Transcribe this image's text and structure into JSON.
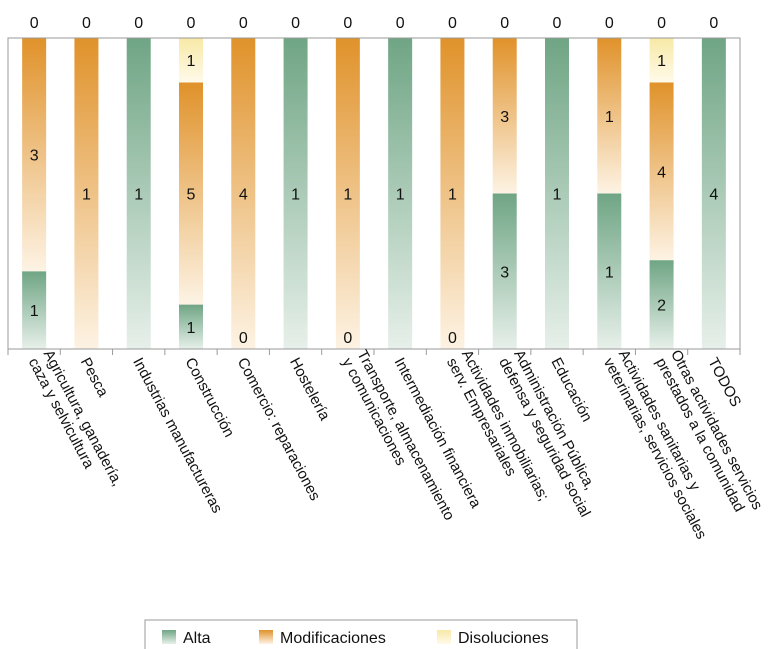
{
  "chart_data": {
    "type": "bar",
    "stacked": "percent",
    "categories": [
      [
        "Agricultura, ganadería,",
        "caza y selvicultura"
      ],
      [
        "Pesca"
      ],
      [
        "Industrias manufactureras"
      ],
      [
        "Construcción"
      ],
      [
        "Comercio: reparaciones"
      ],
      [
        "Hostelería"
      ],
      [
        "Transporte, almacenamiento",
        "y comunicaciones"
      ],
      [
        "Intermediación financiera"
      ],
      [
        "Actividades inmobiliarias;",
        "serv. Empresariales"
      ],
      [
        "Administración Pública,",
        "defensa y seguridad social"
      ],
      [
        "Educación"
      ],
      [
        "Actividades sanitarias y",
        "veterinarias, servicios sociales"
      ],
      [
        "Otras actividades servicios",
        "prestados a la comunidad"
      ],
      [
        "TODOS"
      ]
    ],
    "series": [
      {
        "name": "Alta",
        "color": "#6fa584",
        "values": [
          1,
          0,
          1,
          1,
          0,
          1,
          0,
          1,
          0,
          3,
          1,
          1,
          2,
          4
        ]
      },
      {
        "name": "Modificaciones",
        "color": "#e0922a",
        "values": [
          3,
          1,
          0,
          5,
          4,
          0,
          1,
          0,
          1,
          3,
          0,
          1,
          4,
          0
        ]
      },
      {
        "name": "Disoluciones",
        "color": "#f7e9a6",
        "values": [
          0,
          0,
          0,
          1,
          0,
          0,
          0,
          0,
          0,
          0,
          0,
          0,
          1,
          0
        ]
      }
    ],
    "data_labels": {
      "alta": [
        "1",
        "",
        "1",
        "1",
        "0",
        "1",
        "0",
        "1",
        "0",
        "3",
        "1",
        "1",
        "2",
        "4"
      ],
      "modificaciones": [
        "3",
        "1",
        "",
        "5",
        "4",
        "",
        "1",
        "",
        "1",
        "3",
        "",
        "1",
        "4",
        ""
      ],
      "disoluciones": [
        "",
        "",
        "",
        "1",
        "",
        "",
        "",
        "",
        "",
        "",
        "",
        "",
        "1",
        ""
      ],
      "top": [
        "0",
        "0",
        "0",
        "0",
        "0",
        "0",
        "0",
        "0",
        "0",
        "0",
        "0",
        "0",
        "0",
        "0"
      ]
    },
    "ylim": [
      0,
      1
    ],
    "grid": false,
    "legend_position": "bottom"
  }
}
